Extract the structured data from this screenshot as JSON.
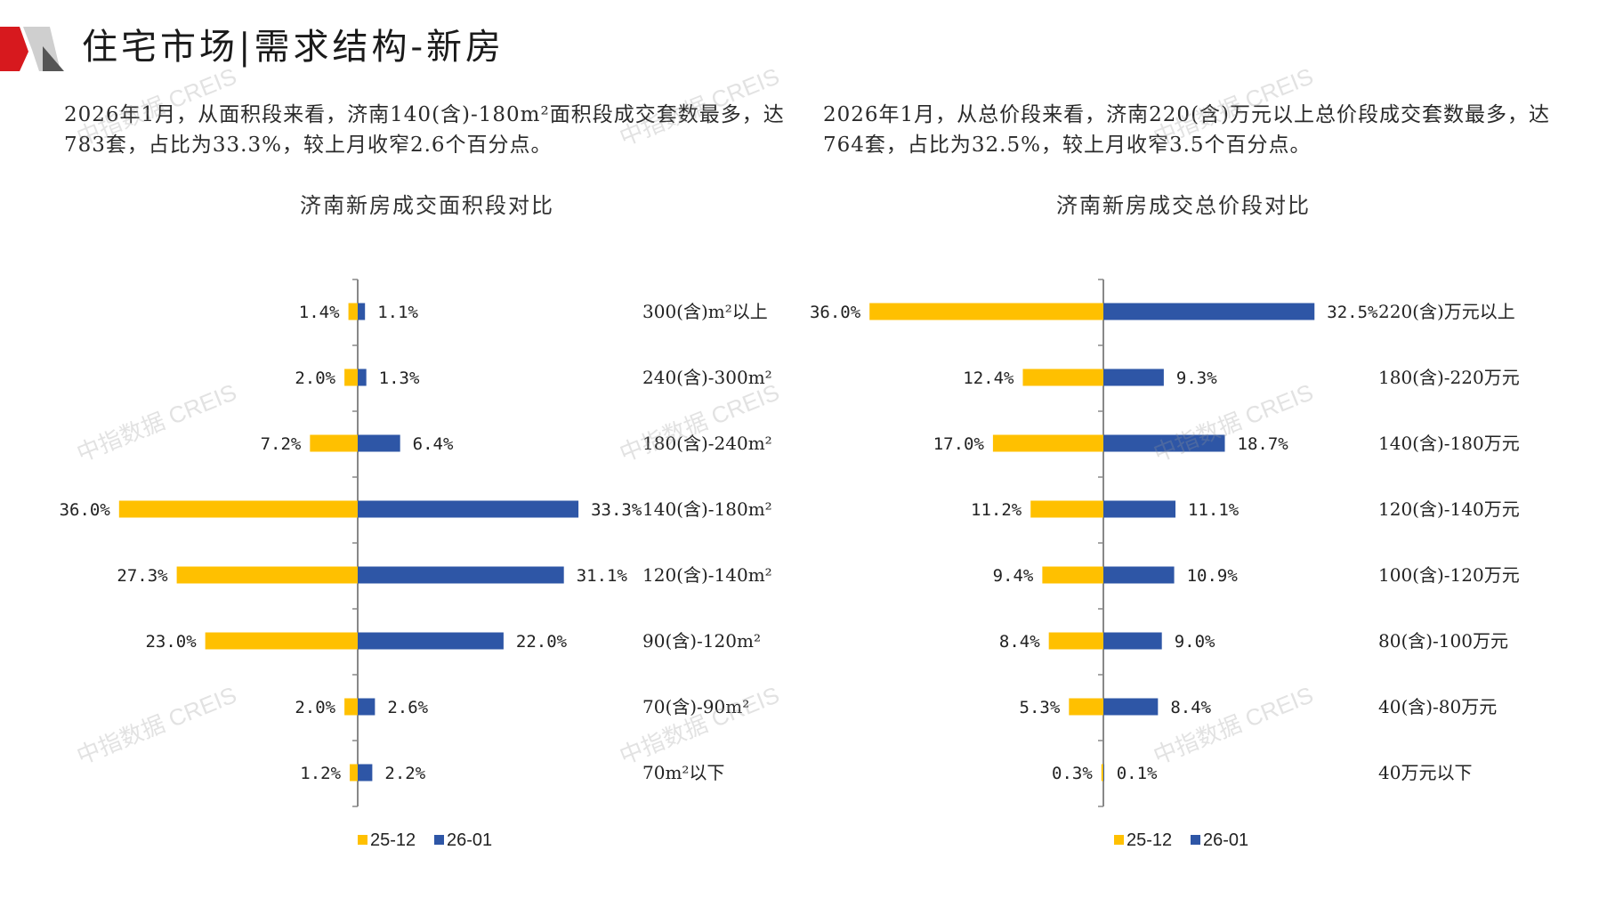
{
  "header": {
    "title": "住宅市场|需求结构-新房",
    "accent_color": "#d7191e"
  },
  "descriptions": {
    "left": "2026年1月，从面积段来看，济南140(含)-180m²面积段成交套数最多，达783套，占比为33.3%，较上月收窄2.6个百分点。",
    "right": "2026年1月，从总价段来看，济南220(含)万元以上总价段成交套数最多，达764套，占比为32.5%，较上月收窄3.5个百分点。"
  },
  "watermark": "中指数据 CREIS",
  "chart_data": [
    {
      "type": "bar",
      "orientation": "horizontal-butterfly",
      "title": "济南新房成交面积段对比",
      "categories": [
        "300(含)m²以上",
        "240(含)-300m²",
        "180(含)-240m²",
        "140(含)-180m²",
        "120(含)-140m²",
        "90(含)-120m²",
        "70(含)-90m²",
        "70m²以下"
      ],
      "series": [
        {
          "name": "25-12",
          "color": "#FFC000",
          "values": [
            1.4,
            2.0,
            7.2,
            36.0,
            27.3,
            23.0,
            2.0,
            1.2
          ],
          "labels": [
            "1.4%",
            "2.0%",
            "7.2%",
            "36.0%",
            "27.3%",
            "23.0%",
            "2.0%",
            "1.2%"
          ]
        },
        {
          "name": "26-01",
          "color": "#2E56A6",
          "values": [
            1.1,
            1.3,
            6.4,
            33.3,
            31.1,
            22.0,
            2.6,
            2.2
          ],
          "labels": [
            "1.1%",
            "1.3%",
            "6.4%",
            "33.3%",
            "31.1%",
            "22.0%",
            "2.6%",
            "2.2%"
          ]
        }
      ],
      "legend": "bottom",
      "grid": false
    },
    {
      "type": "bar",
      "orientation": "horizontal-butterfly",
      "title": "济南新房成交总价段对比",
      "categories": [
        "220(含)万元以上",
        "180(含)-220万元",
        "140(含)-180万元",
        "120(含)-140万元",
        "100(含)-120万元",
        "80(含)-100万元",
        "40(含)-80万元",
        "40万元以下"
      ],
      "series": [
        {
          "name": "25-12",
          "color": "#FFC000",
          "values": [
            36.0,
            12.4,
            17.0,
            11.2,
            9.4,
            8.4,
            5.3,
            0.3
          ],
          "labels": [
            "36.0%",
            "12.4%",
            "17.0%",
            "11.2%",
            "9.4%",
            "8.4%",
            "5.3%",
            "0.3%"
          ]
        },
        {
          "name": "26-01",
          "color": "#2E56A6",
          "values": [
            32.5,
            9.3,
            18.7,
            11.1,
            10.9,
            9.0,
            8.4,
            0.1
          ],
          "labels": [
            "32.5%",
            "9.3%",
            "18.7%",
            "11.1%",
            "10.9%",
            "9.0%",
            "8.4%",
            "0.1%"
          ]
        }
      ],
      "legend": "bottom",
      "grid": false
    }
  ]
}
